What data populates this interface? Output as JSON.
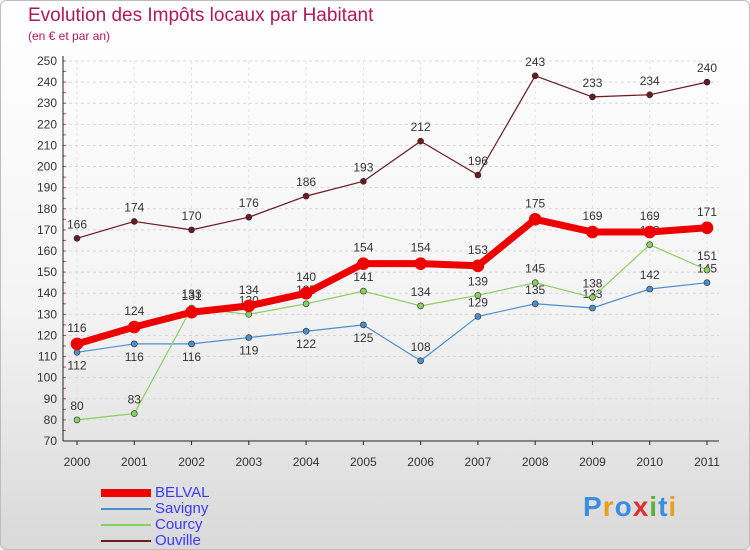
{
  "title": "Evolution des Impôts locaux par Habitant",
  "subtitle": "(en € et par an)",
  "logo": {
    "letters": [
      "P",
      "r",
      "o",
      "x",
      "i",
      "t",
      "i"
    ],
    "colors": [
      "#3b8de0",
      "#e8a020",
      "#3b8de0",
      "#e03030",
      "#60b040",
      "#3b8de0",
      "#e8a020"
    ]
  },
  "chart_data": {
    "type": "line",
    "x": [
      "2000",
      "2001",
      "2002",
      "2003",
      "2004",
      "2005",
      "2006",
      "2007",
      "2008",
      "2009",
      "2010",
      "2011"
    ],
    "ylim": [
      70,
      250
    ],
    "yticks": [
      70,
      80,
      90,
      100,
      110,
      120,
      130,
      140,
      150,
      160,
      170,
      180,
      190,
      200,
      210,
      220,
      230,
      240,
      250
    ],
    "grid": true,
    "legend": "bottom-left",
    "series": [
      {
        "name": "Ouville",
        "color": "#6b1a22",
        "width": 1.2,
        "marker": 3,
        "labelPos": "above",
        "values": [
          166,
          174,
          170,
          176,
          186,
          193,
          212,
          196,
          243,
          233,
          234,
          240
        ]
      },
      {
        "name": "Savigny",
        "color": "#4a90d0",
        "width": 1.2,
        "marker": 3,
        "labelPos": "mixed",
        "values": [
          112,
          116,
          116,
          119,
          122,
          125,
          108,
          129,
          135,
          133,
          142,
          145
        ]
      },
      {
        "name": "Courcy",
        "color": "#88d060",
        "width": 1.2,
        "marker": 3,
        "labelPos": "above",
        "values": [
          80,
          83,
          133,
          130,
          135,
          141,
          134,
          139,
          145,
          138,
          163,
          151
        ]
      },
      {
        "name": "BELVAL",
        "color": "#ee0000",
        "width": 7,
        "marker": 6,
        "labelPos": "above",
        "values": [
          116,
          124,
          131,
          134,
          140,
          154,
          154,
          153,
          175,
          169,
          169,
          171
        ]
      }
    ],
    "legend_order": [
      "BELVAL",
      "Savigny",
      "Courcy",
      "Ouville"
    ]
  }
}
